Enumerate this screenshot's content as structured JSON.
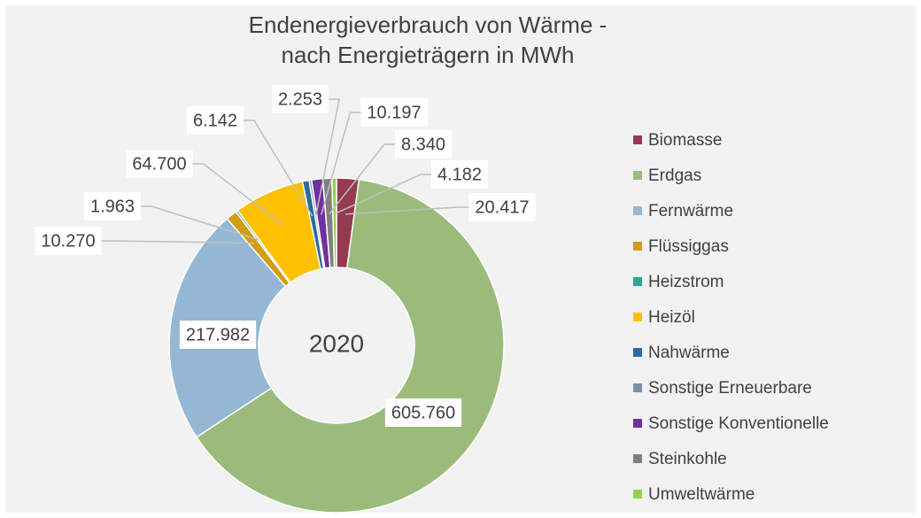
{
  "chart_data": {
    "type": "donut",
    "title": [
      "Endenergieverbrauch von Wärme  -",
      "nach Energieträgern in MWh"
    ],
    "center_label": "2020",
    "categories": [
      "Biomasse",
      "Erdgas",
      "Fernwärme",
      "Flüssiggas",
      "Heizstrom",
      "Heizöl",
      "Nahwärme",
      "Sonstige Erneuerbare",
      "Sonstige Konventionelle",
      "Steinkohle",
      "Umweltwärme"
    ],
    "values": [
      20417,
      605760,
      217982,
      10270,
      1963,
      64700,
      6142,
      2253,
      10197,
      8340,
      4182
    ],
    "value_labels": [
      "20.417",
      "605.760",
      "217.982",
      "10.270",
      "1.963",
      "64.700",
      "6.142",
      "2.253",
      "10.197",
      "8.340",
      "4.182"
    ],
    "colors": [
      "#953a4f",
      "#9bbb7b",
      "#94b8d4",
      "#d29d12",
      "#2ea597",
      "#ffc000",
      "#2e6aa0",
      "#7891a8",
      "#7030a0",
      "#808080",
      "#92d050"
    ],
    "legend": "right"
  }
}
